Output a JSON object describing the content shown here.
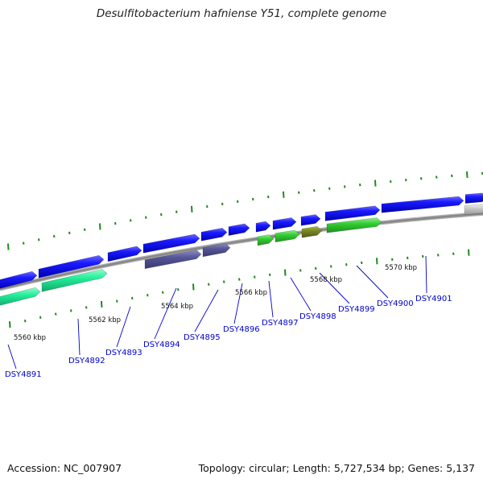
{
  "title": "Desulfitobacterium hafniense Y51, complete genome",
  "footer": {
    "accession": "Accession: NC_007907",
    "summary": "Topology: circular; Length: 5,727,534 bp; Genes: 5,137"
  },
  "colors": {
    "cds_forward": "#1a1aff",
    "cds_green": "#33cc33",
    "cds_teal": "#22ee99",
    "cds_slate": "#555599",
    "cds_olive": "#778822",
    "cds_gray": "#c8c8c8",
    "tick": "#228822",
    "backbone": "#888888",
    "label": "#0000cc"
  },
  "scale_labels": [
    {
      "text": "5560 kbp"
    },
    {
      "text": "5562 kbp"
    },
    {
      "text": "5564 kbp"
    },
    {
      "text": "5566 kbp"
    },
    {
      "text": "5568 kbp"
    },
    {
      "text": "5570 kbp"
    }
  ],
  "gene_labels": [
    {
      "text": "DSY4891"
    },
    {
      "text": "DSY4892"
    },
    {
      "text": "DSY4893"
    },
    {
      "text": "DSY4894"
    },
    {
      "text": "DSY4895"
    },
    {
      "text": "DSY4896"
    },
    {
      "text": "DSY4897"
    },
    {
      "text": "DSY4898"
    },
    {
      "text": "DSY4899"
    },
    {
      "text": "DSY4900"
    },
    {
      "text": "DSY4901"
    }
  ]
}
